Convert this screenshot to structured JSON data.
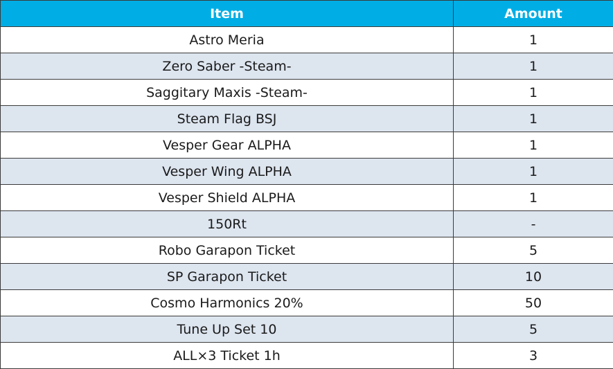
{
  "table": {
    "headers": {
      "item": "Item",
      "amount": "Amount"
    },
    "colors": {
      "header_bg": "#00aee5",
      "header_text": "#ffffff",
      "stripe": "#dde5ef",
      "border": "#3a3a3a"
    },
    "rows": [
      {
        "item": "Astro Meria",
        "amount": "1"
      },
      {
        "item": "Zero Saber -Steam-",
        "amount": "1"
      },
      {
        "item": "Saggitary Maxis -Steam-",
        "amount": "1"
      },
      {
        "item": "Steam Flag BSJ",
        "amount": "1"
      },
      {
        "item": "Vesper Gear ALPHA",
        "amount": "1"
      },
      {
        "item": "Vesper Wing ALPHA",
        "amount": "1"
      },
      {
        "item": "Vesper Shield ALPHA",
        "amount": "1"
      },
      {
        "item": "150Rt",
        "amount": "-"
      },
      {
        "item": "Robo Garapon Ticket",
        "amount": "5"
      },
      {
        "item": "SP Garapon Ticket",
        "amount": "10"
      },
      {
        "item": "Cosmo Harmonics 20%",
        "amount": "50"
      },
      {
        "item": "Tune Up Set 10",
        "amount": "5"
      },
      {
        "item": "ALL×3 Ticket 1h",
        "amount": "3"
      }
    ]
  }
}
